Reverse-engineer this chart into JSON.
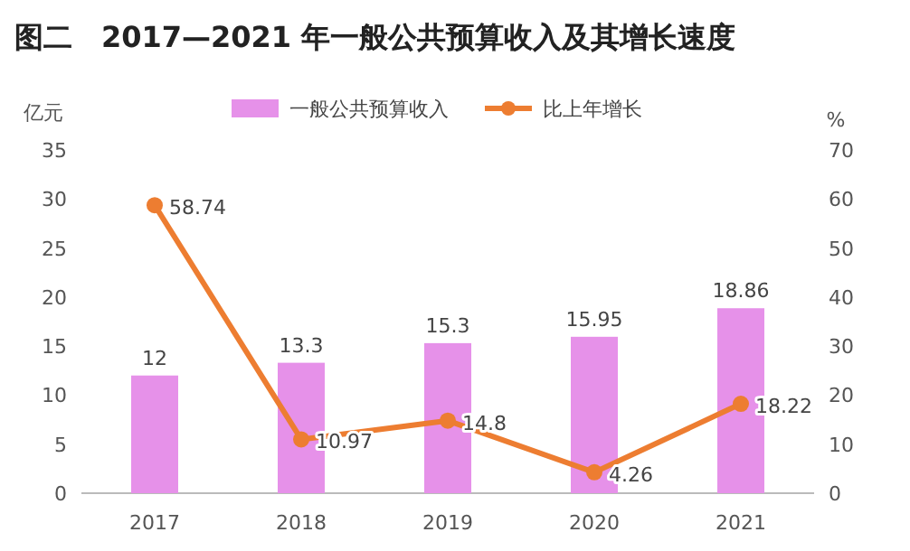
{
  "chart_data": {
    "type": "bar",
    "title": "图二　2017—2021 年一般公共预算收入及其增长速度",
    "ylabel": "亿元",
    "y2label": "%",
    "categories": [
      "2017",
      "2018",
      "2019",
      "2020",
      "2021"
    ],
    "series": [
      {
        "name": "一般公共预算收入",
        "color": "#e691e9",
        "values": [
          12,
          13.3,
          15.3,
          15.95,
          18.86
        ]
      },
      {
        "name": "比上年增长",
        "type": "line",
        "axis": "y2",
        "color": "#ed7d31",
        "values": [
          58.74,
          10.97,
          14.8,
          4.26,
          18.22
        ]
      }
    ],
    "ylim": [
      0,
      35
    ],
    "yticks": [
      0,
      5,
      10,
      15,
      20,
      25,
      30,
      35
    ],
    "y2lim": [
      0,
      70
    ],
    "y2ticks": [
      0,
      10,
      20,
      30,
      40,
      50,
      60,
      70
    ],
    "data_labels": true,
    "legend": "top",
    "marker": "circle",
    "line_style": "solid",
    "grid": false
  }
}
